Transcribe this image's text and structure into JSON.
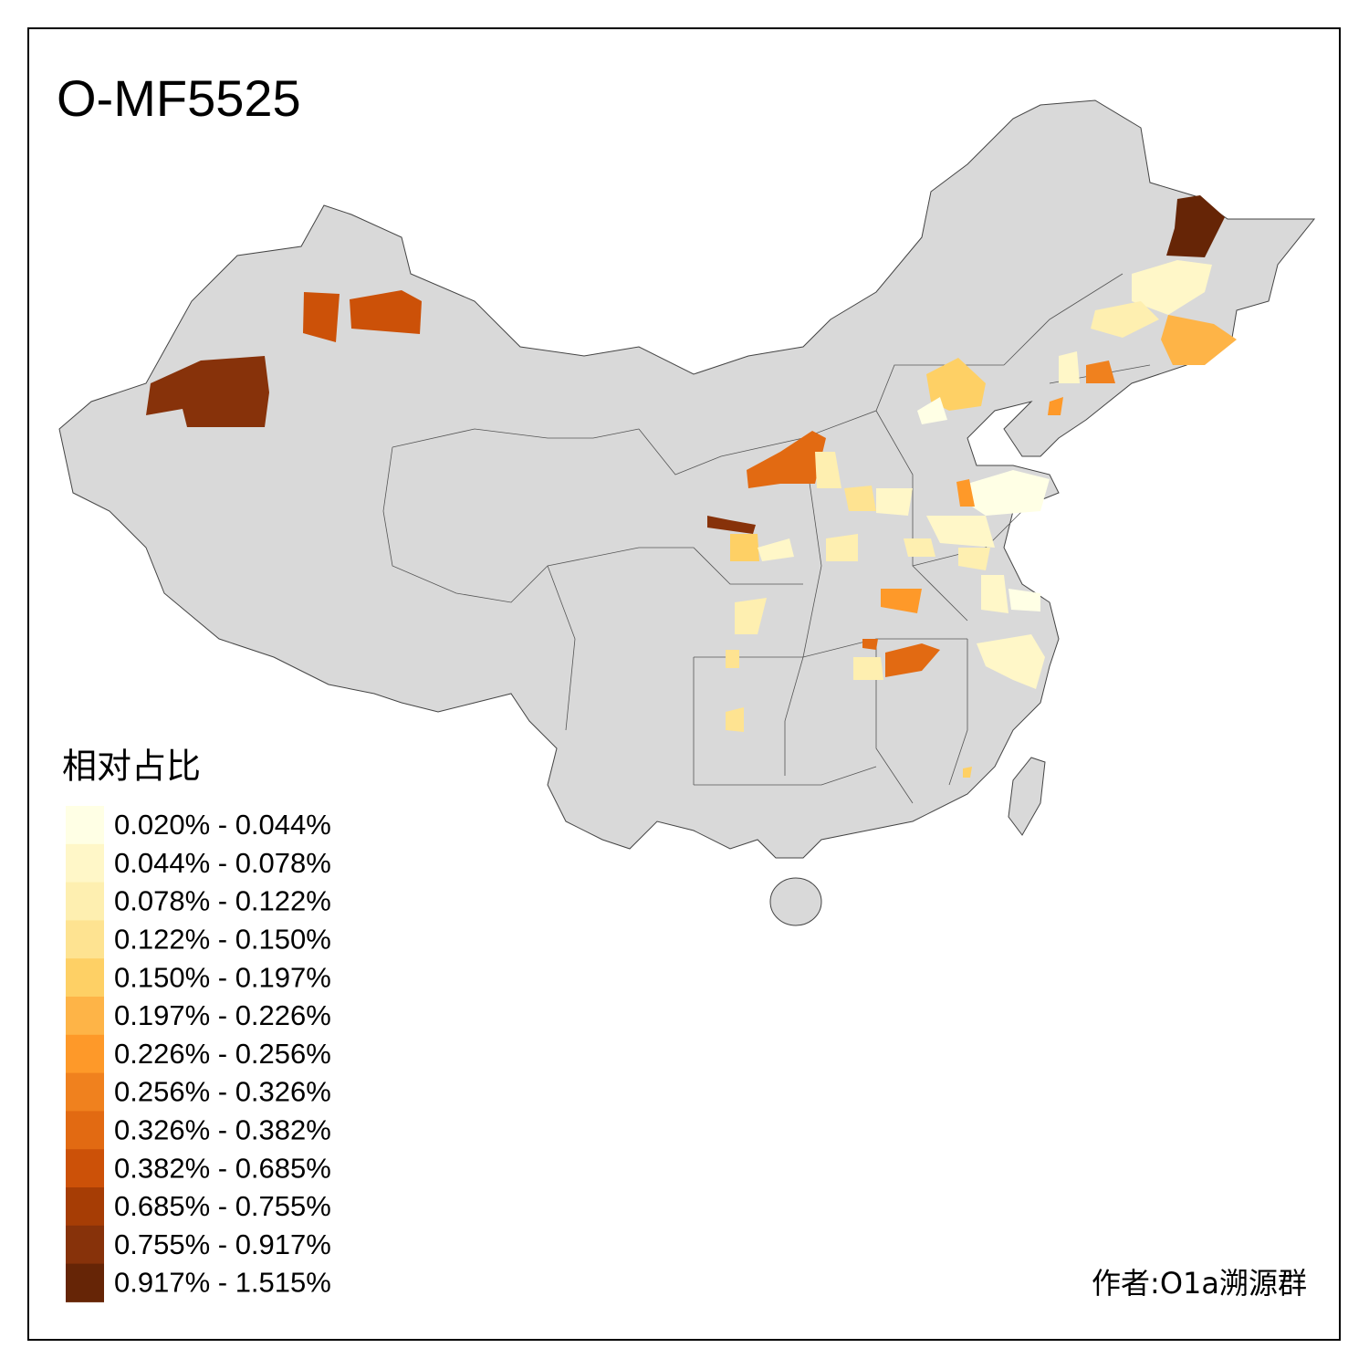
{
  "title": "O-MF5525",
  "legend": {
    "title": "相对占比",
    "items": [
      {
        "label": "0.020% - 0.044%",
        "color": "#ffffe5"
      },
      {
        "label": "0.044% - 0.078%",
        "color": "#fff7c8"
      },
      {
        "label": "0.078% - 0.122%",
        "color": "#feefb0"
      },
      {
        "label": "0.122% - 0.150%",
        "color": "#fee391"
      },
      {
        "label": "0.150% - 0.197%",
        "color": "#fed065"
      },
      {
        "label": "0.197% - 0.226%",
        "color": "#feb447"
      },
      {
        "label": "0.226% - 0.256%",
        "color": "#fe9929"
      },
      {
        "label": "0.256% - 0.326%",
        "color": "#f0811e"
      },
      {
        "label": "0.326% - 0.382%",
        "color": "#e26a12"
      },
      {
        "label": "0.382% - 0.685%",
        "color": "#cc5108"
      },
      {
        "label": "0.685% - 0.755%",
        "color": "#a63d05"
      },
      {
        "label": "0.755% - 0.917%",
        "color": "#87320a"
      },
      {
        "label": "0.917% - 1.515%",
        "color": "#662506"
      }
    ]
  },
  "author": "作者:O1a溯源群"
}
